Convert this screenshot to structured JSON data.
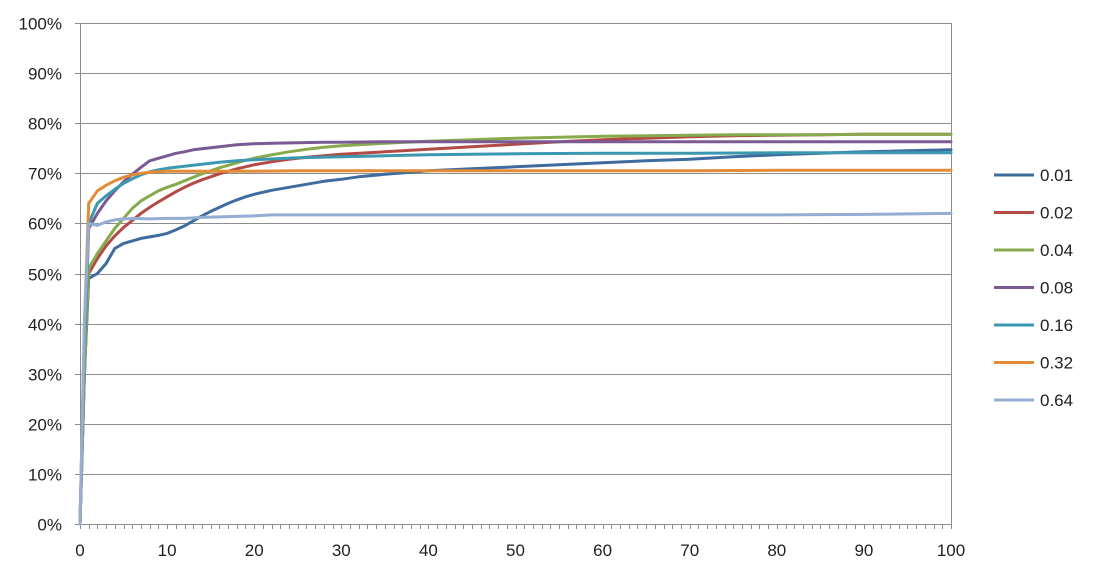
{
  "chart_data": {
    "type": "line",
    "title": "",
    "xlabel": "",
    "ylabel": "",
    "xlim": [
      0,
      100
    ],
    "ylim": [
      0,
      1
    ],
    "x_ticks": [
      0,
      10,
      20,
      30,
      40,
      50,
      60,
      70,
      80,
      90,
      100
    ],
    "y_ticks": [
      0,
      0.1,
      0.2,
      0.3,
      0.4,
      0.5,
      0.6,
      0.7,
      0.8,
      0.9,
      1.0
    ],
    "y_tick_labels": [
      "0%",
      "10%",
      "20%",
      "30%",
      "40%",
      "50%",
      "60%",
      "70%",
      "80%",
      "90%",
      "100%"
    ],
    "x_tick_labels": [
      "0",
      "10",
      "20",
      "30",
      "40",
      "50",
      "60",
      "70",
      "80",
      "90",
      "100"
    ],
    "grid": "horizontal",
    "legend": "right",
    "series": [
      {
        "name": "0.01",
        "color": "#3f6c9f",
        "points": [
          [
            0,
            0
          ],
          [
            0.5,
            0.3
          ],
          [
            1,
            0.49
          ],
          [
            2,
            0.5
          ],
          [
            3,
            0.52
          ],
          [
            4,
            0.55
          ],
          [
            5,
            0.56
          ],
          [
            6,
            0.565
          ],
          [
            7,
            0.57
          ],
          [
            8,
            0.573
          ],
          [
            9,
            0.576
          ],
          [
            10,
            0.58
          ],
          [
            11,
            0.587
          ],
          [
            12,
            0.595
          ],
          [
            13,
            0.605
          ],
          [
            14,
            0.615
          ],
          [
            15,
            0.624
          ],
          [
            16,
            0.632
          ],
          [
            17,
            0.64
          ],
          [
            18,
            0.647
          ],
          [
            19,
            0.653
          ],
          [
            20,
            0.658
          ],
          [
            22,
            0.666
          ],
          [
            24,
            0.672
          ],
          [
            26,
            0.678
          ],
          [
            28,
            0.684
          ],
          [
            30,
            0.688
          ],
          [
            32,
            0.693
          ],
          [
            35,
            0.698
          ],
          [
            38,
            0.702
          ],
          [
            40,
            0.705
          ],
          [
            45,
            0.709
          ],
          [
            50,
            0.713
          ],
          [
            55,
            0.717
          ],
          [
            60,
            0.721
          ],
          [
            65,
            0.725
          ],
          [
            70,
            0.728
          ],
          [
            75,
            0.733
          ],
          [
            80,
            0.737
          ],
          [
            85,
            0.74
          ],
          [
            90,
            0.743
          ],
          [
            95,
            0.745
          ],
          [
            100,
            0.747
          ]
        ]
      },
      {
        "name": "0.02",
        "color": "#b24a46",
        "points": [
          [
            0,
            0
          ],
          [
            0.5,
            0.3
          ],
          [
            1,
            0.5
          ],
          [
            2,
            0.53
          ],
          [
            3,
            0.555
          ],
          [
            4,
            0.575
          ],
          [
            5,
            0.592
          ],
          [
            6,
            0.606
          ],
          [
            7,
            0.62
          ],
          [
            8,
            0.632
          ],
          [
            9,
            0.643
          ],
          [
            10,
            0.653
          ],
          [
            11,
            0.663
          ],
          [
            12,
            0.672
          ],
          [
            13,
            0.68
          ],
          [
            14,
            0.687
          ],
          [
            15,
            0.693
          ],
          [
            16,
            0.699
          ],
          [
            17,
            0.704
          ],
          [
            18,
            0.709
          ],
          [
            19,
            0.713
          ],
          [
            20,
            0.717
          ],
          [
            22,
            0.723
          ],
          [
            24,
            0.728
          ],
          [
            26,
            0.732
          ],
          [
            28,
            0.735
          ],
          [
            30,
            0.738
          ],
          [
            35,
            0.743
          ],
          [
            40,
            0.748
          ],
          [
            45,
            0.753
          ],
          [
            50,
            0.758
          ],
          [
            55,
            0.763
          ],
          [
            60,
            0.767
          ],
          [
            65,
            0.77
          ],
          [
            70,
            0.773
          ],
          [
            75,
            0.775
          ],
          [
            80,
            0.776
          ],
          [
            85,
            0.777
          ],
          [
            90,
            0.778
          ],
          [
            95,
            0.778
          ],
          [
            100,
            0.778
          ]
        ]
      },
      {
        "name": "0.04",
        "color": "#86aa4c",
        "points": [
          [
            0,
            0
          ],
          [
            0.5,
            0.3
          ],
          [
            1,
            0.51
          ],
          [
            2,
            0.54
          ],
          [
            3,
            0.565
          ],
          [
            4,
            0.59
          ],
          [
            5,
            0.61
          ],
          [
            6,
            0.63
          ],
          [
            7,
            0.645
          ],
          [
            8,
            0.655
          ],
          [
            9,
            0.665
          ],
          [
            10,
            0.672
          ],
          [
            11,
            0.678
          ],
          [
            12,
            0.685
          ],
          [
            13,
            0.692
          ],
          [
            14,
            0.699
          ],
          [
            15,
            0.705
          ],
          [
            16,
            0.711
          ],
          [
            17,
            0.716
          ],
          [
            18,
            0.721
          ],
          [
            19,
            0.726
          ],
          [
            20,
            0.73
          ],
          [
            22,
            0.737
          ],
          [
            24,
            0.743
          ],
          [
            26,
            0.748
          ],
          [
            28,
            0.752
          ],
          [
            30,
            0.755
          ],
          [
            35,
            0.76
          ],
          [
            40,
            0.764
          ],
          [
            45,
            0.767
          ],
          [
            50,
            0.77
          ],
          [
            55,
            0.772
          ],
          [
            60,
            0.774
          ],
          [
            65,
            0.775
          ],
          [
            70,
            0.776
          ],
          [
            75,
            0.777
          ],
          [
            80,
            0.777
          ],
          [
            85,
            0.777
          ],
          [
            90,
            0.778
          ],
          [
            95,
            0.778
          ],
          [
            100,
            0.778
          ]
        ]
      },
      {
        "name": "0.08",
        "color": "#7a5a92",
        "points": [
          [
            0,
            0
          ],
          [
            0.5,
            0.35
          ],
          [
            1,
            0.59
          ],
          [
            2,
            0.62
          ],
          [
            3,
            0.645
          ],
          [
            4,
            0.665
          ],
          [
            5,
            0.683
          ],
          [
            6,
            0.698
          ],
          [
            7,
            0.712
          ],
          [
            8,
            0.725
          ],
          [
            9,
            0.73
          ],
          [
            10,
            0.735
          ],
          [
            11,
            0.74
          ],
          [
            12,
            0.743
          ],
          [
            13,
            0.747
          ],
          [
            14,
            0.749
          ],
          [
            15,
            0.751
          ],
          [
            16,
            0.753
          ],
          [
            17,
            0.755
          ],
          [
            18,
            0.757
          ],
          [
            19,
            0.758
          ],
          [
            20,
            0.759
          ],
          [
            22,
            0.76
          ],
          [
            25,
            0.761
          ],
          [
            28,
            0.762
          ],
          [
            30,
            0.762
          ],
          [
            35,
            0.763
          ],
          [
            40,
            0.763
          ],
          [
            45,
            0.763
          ],
          [
            50,
            0.763
          ],
          [
            55,
            0.763
          ],
          [
            60,
            0.763
          ],
          [
            65,
            0.763
          ],
          [
            70,
            0.763
          ],
          [
            75,
            0.763
          ],
          [
            80,
            0.763
          ],
          [
            85,
            0.763
          ],
          [
            90,
            0.763
          ],
          [
            95,
            0.763
          ],
          [
            100,
            0.763
          ]
        ]
      },
      {
        "name": "0.16",
        "color": "#3b98b0",
        "points": [
          [
            0,
            0
          ],
          [
            0.5,
            0.35
          ],
          [
            1,
            0.6
          ],
          [
            2,
            0.64
          ],
          [
            3,
            0.655
          ],
          [
            4,
            0.668
          ],
          [
            5,
            0.68
          ],
          [
            6,
            0.689
          ],
          [
            7,
            0.697
          ],
          [
            8,
            0.703
          ],
          [
            9,
            0.707
          ],
          [
            10,
            0.71
          ],
          [
            12,
            0.714
          ],
          [
            14,
            0.718
          ],
          [
            16,
            0.722
          ],
          [
            18,
            0.725
          ],
          [
            20,
            0.727
          ],
          [
            25,
            0.731
          ],
          [
            30,
            0.733
          ],
          [
            35,
            0.735
          ],
          [
            40,
            0.737
          ],
          [
            45,
            0.738
          ],
          [
            50,
            0.739
          ],
          [
            60,
            0.74
          ],
          [
            70,
            0.74
          ],
          [
            80,
            0.741
          ],
          [
            90,
            0.741
          ],
          [
            100,
            0.741
          ]
        ]
      },
      {
        "name": "0.32",
        "color": "#e38b36",
        "points": [
          [
            0,
            0
          ],
          [
            0.5,
            0.4
          ],
          [
            1,
            0.64
          ],
          [
            2,
            0.665
          ],
          [
            3,
            0.676
          ],
          [
            4,
            0.685
          ],
          [
            5,
            0.692
          ],
          [
            6,
            0.697
          ],
          [
            7,
            0.7
          ],
          [
            8,
            0.702
          ],
          [
            9,
            0.703
          ],
          [
            10,
            0.704
          ],
          [
            15,
            0.704
          ],
          [
            20,
            0.704
          ],
          [
            25,
            0.705
          ],
          [
            30,
            0.705
          ],
          [
            40,
            0.705
          ],
          [
            50,
            0.705
          ],
          [
            60,
            0.705
          ],
          [
            70,
            0.705
          ],
          [
            80,
            0.706
          ],
          [
            90,
            0.706
          ],
          [
            100,
            0.706
          ]
        ]
      },
      {
        "name": "0.64",
        "color": "#93aed2",
        "points": [
          [
            0,
            0
          ],
          [
            0.5,
            0.4
          ],
          [
            1,
            0.6
          ],
          [
            2,
            0.596
          ],
          [
            3,
            0.603
          ],
          [
            4,
            0.607
          ],
          [
            5,
            0.609
          ],
          [
            6,
            0.61
          ],
          [
            8,
            0.609
          ],
          [
            10,
            0.61
          ],
          [
            12,
            0.61
          ],
          [
            14,
            0.612
          ],
          [
            16,
            0.613
          ],
          [
            18,
            0.614
          ],
          [
            20,
            0.615
          ],
          [
            22,
            0.617
          ],
          [
            25,
            0.617
          ],
          [
            30,
            0.617
          ],
          [
            40,
            0.617
          ],
          [
            50,
            0.617
          ],
          [
            60,
            0.617
          ],
          [
            70,
            0.617
          ],
          [
            80,
            0.617
          ],
          [
            90,
            0.618
          ],
          [
            100,
            0.62
          ]
        ]
      }
    ]
  }
}
